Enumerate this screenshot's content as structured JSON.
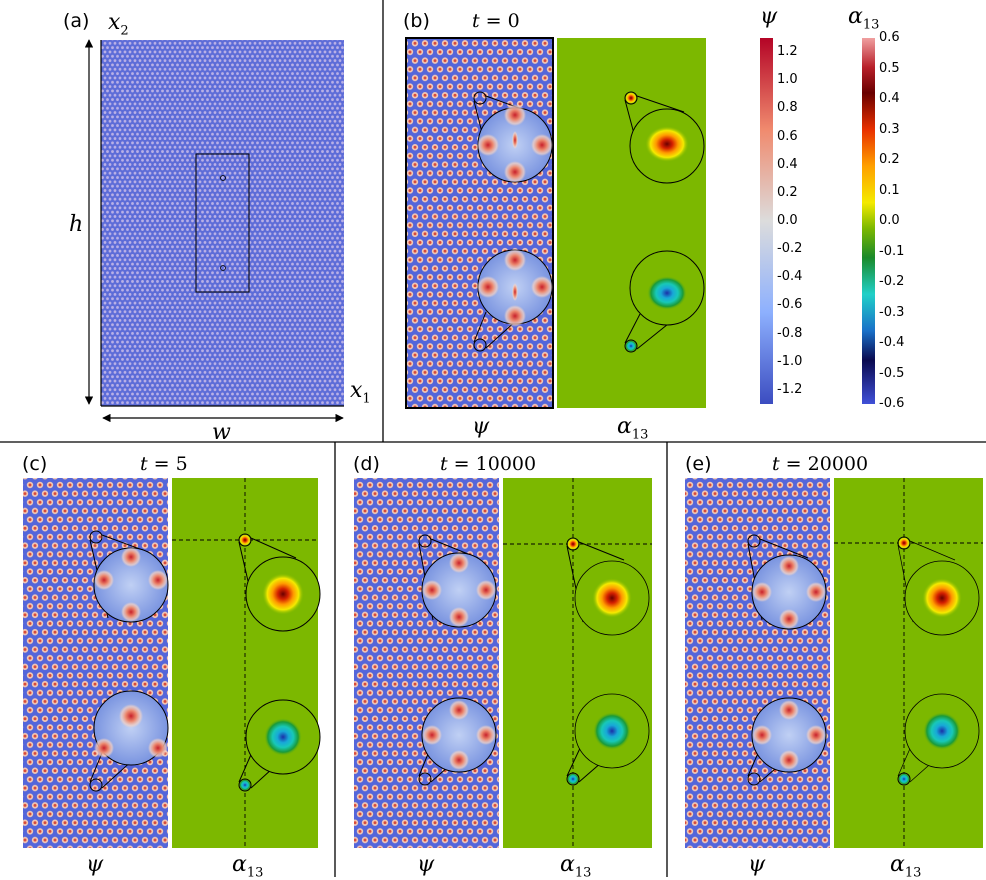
{
  "panels": {
    "a": {
      "label": "(a)",
      "x1": "x",
      "x1_sub": "1",
      "x2": "x",
      "x2_sub": "2",
      "h": "h",
      "w": "w"
    },
    "b": {
      "label": "(b)",
      "time": "0"
    },
    "c": {
      "label": "(c)",
      "time": "5"
    },
    "d": {
      "label": "(d)",
      "time": "10000"
    },
    "e": {
      "label": "(e)",
      "time": "20000"
    }
  },
  "time_prefix": "t =",
  "field_labels": {
    "psi": "ψ",
    "alpha": "α",
    "alpha_sub": "13"
  },
  "colorbars": {
    "psi": {
      "title": "ψ",
      "ticks": [
        "1.2",
        "1.0",
        "0.8",
        "0.6",
        "0.4",
        "0.2",
        "0.0",
        "-0.2",
        "-0.4",
        "-0.6",
        "-0.8",
        "-1.0",
        "-1.2"
      ],
      "range": [
        -1.3,
        1.3
      ]
    },
    "alpha": {
      "title": "α",
      "title_sub": "13",
      "ticks": [
        "0.6",
        "0.5",
        "0.4",
        "0.3",
        "0.2",
        "0.1",
        "0.0",
        "-0.1",
        "-0.2",
        "-0.3",
        "-0.4",
        "-0.5",
        "-0.6"
      ],
      "range": [
        -0.6,
        0.6
      ]
    }
  },
  "colors": {
    "lattice_bg": "#5a6ede",
    "lattice_dot": "#f0b0a0",
    "alpha_bg": "#7cb800",
    "separator": "#000000"
  }
}
